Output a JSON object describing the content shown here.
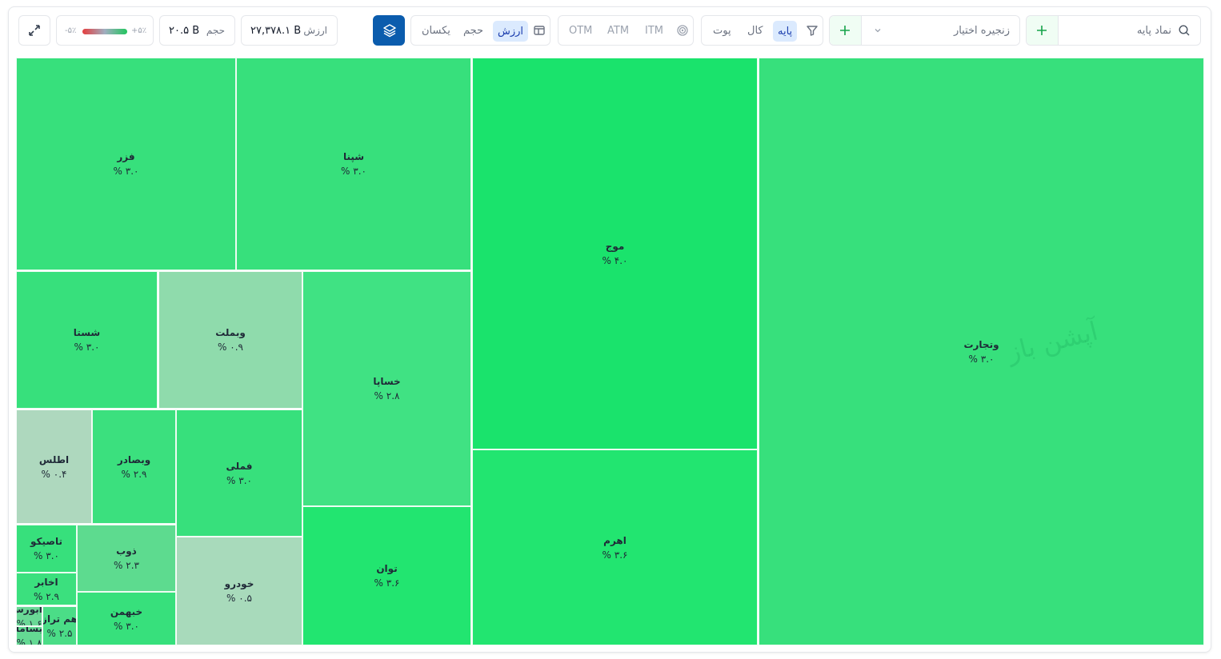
{
  "toolbar": {
    "search_placeholder": "نماد پایه",
    "chain_select": "زنجیره اختیار",
    "filter_options": [
      "پایه",
      "کال",
      "پوت"
    ],
    "moneyness_options": [
      "ITM",
      "ATM",
      "OTM"
    ],
    "metric_options": [
      "ارزش",
      "حجم",
      "یکسان"
    ],
    "value_label": "ارزش",
    "value": "۲۷,۳۷۸.۱ B",
    "volume_label": "حجم",
    "volume": "۲۰.۵ B",
    "legend_min": "-۵٪",
    "legend_max": "+۵٪"
  },
  "treemap": {
    "watermark": "آپشن باز",
    "tiles": [
      {
        "name": "وتجارت",
        "change": "۳.۰ %"
      },
      {
        "name": "موج",
        "change": "۴.۰ %"
      },
      {
        "name": "اهرم",
        "change": "۳.۶ %"
      },
      {
        "name": "فزر",
        "change": "۳.۰ %"
      },
      {
        "name": "شپنا",
        "change": "۳.۰ %"
      },
      {
        "name": "شستا",
        "change": "۳.۰ %"
      },
      {
        "name": "وبملت",
        "change": "۰.۹ %"
      },
      {
        "name": "خساپا",
        "change": "۲.۸ %"
      },
      {
        "name": "توان",
        "change": "۳.۶ %"
      },
      {
        "name": "اطلس",
        "change": "۰.۴ %"
      },
      {
        "name": "وبصادر",
        "change": "۲.۹ %"
      },
      {
        "name": "فملی",
        "change": "۳.۰ %"
      },
      {
        "name": "خودرو",
        "change": "۰.۵ %"
      },
      {
        "name": "تاصیکو",
        "change": "۳.۰ %"
      },
      {
        "name": "ذوب",
        "change": "۲.۳ %"
      },
      {
        "name": "اخابر",
        "change": "۲.۹ %"
      },
      {
        "name": "خبهمن",
        "change": "۳.۰ %"
      },
      {
        "name": "هم تراز",
        "change": "۲.۵ %"
      },
      {
        "name": "رابورس",
        "change": "۱.۶ %"
      },
      {
        "name": "بساما",
        "change": "۱.۸ %"
      }
    ]
  }
}
